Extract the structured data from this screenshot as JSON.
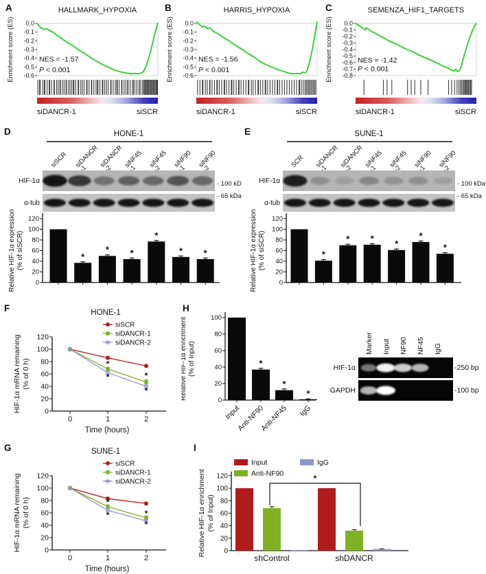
{
  "letters": {
    "A": "A",
    "B": "B",
    "C": "C",
    "D": "D",
    "E": "E",
    "F": "F",
    "G": "G",
    "H": "H",
    "I": "I"
  },
  "colors": {
    "gsea_green": "#35d435",
    "dark_red": "#b01c1c",
    "green": "#80b122",
    "purple": "#9195cb",
    "bar_black": "#0a0a0a"
  },
  "gradient_stops": [
    [
      "0%",
      "#c81f1f"
    ],
    [
      "28%",
      "#da5f5f"
    ],
    [
      "46%",
      "#efc0c0"
    ],
    [
      "54%",
      "#f6e8f0"
    ],
    [
      "62%",
      "#dcdff0"
    ],
    [
      "74%",
      "#a0a6da"
    ],
    [
      "88%",
      "#4040bf"
    ],
    [
      "100%",
      "#2222aa"
    ]
  ],
  "chart_data": [
    {
      "panel": "A",
      "type": "line",
      "subtype": "gsea-enrichment",
      "title": "HALLMARK_HYPOXIA",
      "ylabel": "Enrichment score (ES)",
      "nes_text": "NES = -1.57",
      "p_text": "P < 0.001",
      "xlabel_left": "siDANCR-1",
      "xlabel_right": "siSCR",
      "ylim": [
        -0.6,
        0
      ],
      "yticks": [
        0,
        -0.1,
        -0.2,
        -0.3,
        -0.4,
        -0.5,
        -0.6
      ],
      "nes_es": -0.44,
      "p_es": -0.56,
      "curve": [
        [
          0,
          0
        ],
        [
          0.03,
          -0.05
        ],
        [
          0.06,
          -0.07
        ],
        [
          0.08,
          -0.06
        ],
        [
          0.1,
          -0.08
        ],
        [
          0.13,
          -0.1
        ],
        [
          0.16,
          -0.13
        ],
        [
          0.2,
          -0.17
        ],
        [
          0.25,
          -0.22
        ],
        [
          0.3,
          -0.26
        ],
        [
          0.35,
          -0.31
        ],
        [
          0.4,
          -0.35
        ],
        [
          0.45,
          -0.4
        ],
        [
          0.5,
          -0.44
        ],
        [
          0.55,
          -0.48
        ],
        [
          0.6,
          -0.51
        ],
        [
          0.65,
          -0.54
        ],
        [
          0.7,
          -0.56
        ],
        [
          0.74,
          -0.57
        ],
        [
          0.78,
          -0.58
        ],
        [
          0.81,
          -0.575
        ],
        [
          0.84,
          -0.58
        ],
        [
          0.86,
          -0.57
        ],
        [
          0.88,
          -0.555
        ],
        [
          0.9,
          -0.5
        ],
        [
          0.92,
          -0.42
        ],
        [
          0.94,
          -0.32
        ],
        [
          0.96,
          -0.2
        ],
        [
          0.98,
          -0.09
        ],
        [
          1,
          0.01
        ]
      ],
      "hit_ticks": [
        0.006,
        0.02,
        0.027,
        0.048,
        0.06,
        0.065,
        0.083,
        0.1,
        0.104,
        0.12,
        0.14,
        0.143,
        0.162,
        0.175,
        0.19,
        0.193,
        0.21,
        0.224,
        0.24,
        0.243,
        0.26,
        0.273,
        0.287,
        0.3,
        0.305,
        0.32,
        0.34,
        0.345,
        0.362,
        0.375,
        0.39,
        0.41,
        0.414,
        0.43,
        0.45,
        0.453,
        0.47,
        0.488,
        0.5,
        0.504,
        0.52,
        0.54,
        0.545,
        0.56,
        0.575,
        0.59,
        0.61,
        0.613,
        0.63,
        0.648,
        0.66,
        0.665,
        0.68,
        0.7,
        0.703,
        0.72,
        0.735,
        0.75,
        0.753,
        0.77,
        0.788,
        0.8,
        0.803,
        0.82,
        0.835,
        0.85,
        0.853,
        0.87,
        0.88,
        0.888,
        0.896,
        0.903,
        0.91,
        0.917,
        0.925,
        0.932,
        0.94,
        0.947,
        0.955,
        0.962,
        0.97,
        0.977,
        0.985,
        0.992,
        0.997
      ]
    },
    {
      "panel": "B",
      "type": "line",
      "subtype": "gsea-enrichment",
      "title": "HARRIS_HYPOXIA",
      "ylabel": "Enrichment score (ES)",
      "nes_text": "NES = -1.56",
      "p_text": "P < 0.001",
      "xlabel_left": "siDANCR-1",
      "xlabel_right": "siSCR",
      "ylim": [
        -0.6,
        0
      ],
      "yticks": [
        0,
        -0.1,
        -0.2,
        -0.3,
        -0.4,
        -0.5,
        -0.6
      ],
      "nes_es": -0.44,
      "p_es": -0.56,
      "curve": [
        [
          0,
          0.02
        ],
        [
          0.03,
          -0.02
        ],
        [
          0.05,
          -0.04
        ],
        [
          0.07,
          -0.03
        ],
        [
          0.09,
          -0.06
        ],
        [
          0.11,
          -0.05
        ],
        [
          0.14,
          -0.09
        ],
        [
          0.18,
          -0.12
        ],
        [
          0.22,
          -0.16
        ],
        [
          0.27,
          -0.2
        ],
        [
          0.32,
          -0.25
        ],
        [
          0.37,
          -0.29
        ],
        [
          0.42,
          -0.34
        ],
        [
          0.47,
          -0.38
        ],
        [
          0.52,
          -0.43
        ],
        [
          0.57,
          -0.47
        ],
        [
          0.62,
          -0.5
        ],
        [
          0.67,
          -0.53
        ],
        [
          0.72,
          -0.55
        ],
        [
          0.76,
          -0.57
        ],
        [
          0.8,
          -0.58
        ],
        [
          0.83,
          -0.575
        ],
        [
          0.86,
          -0.58
        ],
        [
          0.88,
          -0.56
        ],
        [
          0.9,
          -0.57
        ],
        [
          0.915,
          -0.55
        ],
        [
          0.93,
          -0.48
        ],
        [
          0.95,
          -0.37
        ],
        [
          0.97,
          -0.22
        ],
        [
          0.985,
          -0.1
        ],
        [
          1,
          0.02
        ]
      ],
      "hit_ticks": [
        0.01,
        0.03,
        0.05,
        0.055,
        0.075,
        0.09,
        0.11,
        0.113,
        0.13,
        0.15,
        0.17,
        0.174,
        0.19,
        0.21,
        0.23,
        0.234,
        0.25,
        0.27,
        0.29,
        0.295,
        0.31,
        0.33,
        0.35,
        0.354,
        0.37,
        0.39,
        0.41,
        0.43,
        0.435,
        0.455,
        0.47,
        0.49,
        0.51,
        0.514,
        0.53,
        0.55,
        0.57,
        0.574,
        0.59,
        0.61,
        0.63,
        0.65,
        0.67,
        0.674,
        0.69,
        0.71,
        0.73,
        0.75,
        0.77,
        0.79,
        0.81,
        0.83,
        0.85,
        0.855,
        0.87,
        0.885,
        0.9,
        0.91,
        0.92,
        0.93,
        0.94,
        0.95,
        0.96,
        0.97,
        0.98,
        0.99
      ]
    },
    {
      "panel": "C",
      "type": "line",
      "subtype": "gsea-enrichment",
      "title": "SEMENZA_HIF1_TARGETS",
      "ylabel": "Enrichment score (ES)",
      "nes_text": "NES = -1.42",
      "p_text": "P < 0.001",
      "xlabel_left": "siDANCR-1",
      "xlabel_right": "siSCR",
      "ylim": [
        -0.8,
        0
      ],
      "yticks": [
        0,
        -0.1,
        -0.2,
        -0.3,
        -0.4,
        -0.5,
        -0.6,
        -0.7,
        -0.8
      ],
      "nes_es": -0.6,
      "p_es": -0.73,
      "curve": [
        [
          0,
          0
        ],
        [
          0.05,
          -0.06
        ],
        [
          0.08,
          -0.1
        ],
        [
          0.09,
          -0.07
        ],
        [
          0.13,
          -0.12
        ],
        [
          0.18,
          -0.17
        ],
        [
          0.23,
          -0.22
        ],
        [
          0.28,
          -0.27
        ],
        [
          0.33,
          -0.31
        ],
        [
          0.38,
          -0.36
        ],
        [
          0.43,
          -0.4
        ],
        [
          0.48,
          -0.44
        ],
        [
          0.53,
          -0.49
        ],
        [
          0.58,
          -0.53
        ],
        [
          0.63,
          -0.57
        ],
        [
          0.68,
          -0.61
        ],
        [
          0.72,
          -0.65
        ],
        [
          0.76,
          -0.68
        ],
        [
          0.79,
          -0.71
        ],
        [
          0.815,
          -0.73
        ],
        [
          0.83,
          -0.7
        ],
        [
          0.845,
          -0.74
        ],
        [
          0.86,
          -0.72
        ],
        [
          0.875,
          -0.66
        ],
        [
          0.89,
          -0.55
        ],
        [
          0.91,
          -0.42
        ],
        [
          0.93,
          -0.3
        ],
        [
          0.95,
          -0.19
        ],
        [
          0.97,
          -0.1
        ],
        [
          0.985,
          -0.04
        ],
        [
          1,
          0.005
        ]
      ],
      "hit_ticks": [
        0.07,
        0.23,
        0.26,
        0.3,
        0.43,
        0.46,
        0.49,
        0.54,
        0.6,
        0.77,
        0.795,
        0.82,
        0.84,
        0.855,
        0.867,
        0.878,
        0.888,
        0.897,
        0.905,
        0.913,
        0.92,
        0.928,
        0.936,
        0.944,
        0.952,
        0.96
      ]
    },
    {
      "panel": "D",
      "type": "blot-with-bar",
      "cell_line": "HONE-1",
      "lanes": [
        "siSCR",
        "siDANCR\n-1",
        "siDANCR\n-2",
        "siNF45\n-1",
        "siNF45\n-2",
        "siNF90\n-1",
        "siNF90\n-2"
      ],
      "blot_rows": [
        {
          "name": "HIF-1α",
          "size_label": "100 kDa",
          "intensities": [
            0.95,
            0.75,
            0.4,
            0.5,
            0.45,
            0.58,
            0.45
          ]
        },
        {
          "name": "α-tub",
          "size_label": "65 kDa",
          "intensities": [
            0.95,
            0.95,
            0.95,
            0.95,
            0.95,
            0.95,
            0.95
          ]
        }
      ],
      "bar": {
        "ylabel_lines": [
          "Relative HIF-1α expression",
          "(% of siSCR)"
        ],
        "ylim": [
          0,
          120
        ],
        "ytick_step": 20,
        "values": [
          100,
          37,
          50,
          44,
          77,
          48,
          44
        ],
        "errors": [
          0,
          2,
          2,
          2,
          2,
          2,
          2
        ],
        "sig": [
          "",
          "*",
          "*",
          "*",
          "*",
          "*",
          "*"
        ]
      }
    },
    {
      "panel": "E",
      "type": "blot-with-bar",
      "cell_line": "SUNE-1",
      "lanes": [
        "SCR",
        "siDANCR\n-1",
        "siDANCR\n-2",
        "siNF45\n-1",
        "siNF45\n-2",
        "siNF90\n-1",
        "siNF90\n-2"
      ],
      "blot_rows": [
        {
          "name": "HIF-1α",
          "size_label": "100 kDa",
          "intensities": [
            0.9,
            0.22,
            0.13,
            0.28,
            0.2,
            0.22,
            0.13
          ]
        },
        {
          "name": "α-tub",
          "size_label": "65 kDa",
          "intensities": [
            0.95,
            0.95,
            0.95,
            0.95,
            0.95,
            0.95,
            0.95
          ]
        }
      ],
      "bar": {
        "ylabel_lines": [
          "Relative HIF-1α expression",
          "(% of siSCR)"
        ],
        "ylim": [
          0,
          120
        ],
        "ytick_step": 20,
        "values": [
          100,
          41,
          70,
          71,
          61,
          76,
          54
        ],
        "errors": [
          0,
          2,
          2,
          2,
          2,
          2,
          2
        ],
        "sig": [
          "",
          "*",
          "*",
          "*",
          "*",
          "*",
          "*"
        ]
      }
    },
    {
      "panel": "F",
      "type": "line",
      "title": "HONE-1",
      "xlabel": "Time (hours)",
      "ylabel_lines": [
        "HIF-1α mRNA remaining",
        "(% of 0 h)"
      ],
      "x": [
        0,
        1,
        2
      ],
      "ylim": [
        0,
        120
      ],
      "ytick_step": 20,
      "series": [
        {
          "name": "siSCR",
          "color_key": "dark_red",
          "marker": "circle",
          "values": [
            100,
            86,
            73
          ],
          "errors": [
            0,
            2,
            2
          ]
        },
        {
          "name": "siDANCR-1",
          "color_key": "green",
          "marker": "square",
          "values": [
            100,
            68,
            47
          ],
          "errors": [
            0,
            3,
            4
          ]
        },
        {
          "name": "siDANCR-2",
          "color_key": "purple",
          "marker": "star",
          "values": [
            100,
            62,
            40
          ],
          "errors": [
            0,
            3,
            3
          ]
        }
      ],
      "sig_marks": [
        [
          1,
          76
        ],
        [
          1,
          55
        ],
        [
          2,
          57
        ],
        [
          2,
          33
        ]
      ]
    },
    {
      "panel": "G",
      "type": "line",
      "title": "SUNE-1",
      "xlabel": "Time (hours)",
      "ylabel_lines": [
        "HIF-1α mRNA remaining",
        "(% of 0 h)"
      ],
      "x": [
        0,
        1,
        2
      ],
      "ylim": [
        0,
        120
      ],
      "ytick_step": 20,
      "series": [
        {
          "name": "siSCR",
          "color_key": "dark_red",
          "marker": "circle",
          "values": [
            100,
            83,
            75
          ],
          "errors": [
            0,
            2,
            2
          ]
        },
        {
          "name": "siDANCR-1",
          "color_key": "green",
          "marker": "square",
          "values": [
            100,
            70,
            52
          ],
          "errors": [
            0,
            3,
            3
          ]
        },
        {
          "name": "siDANCR-2",
          "color_key": "purple",
          "marker": "star",
          "values": [
            100,
            64,
            47
          ],
          "errors": [
            0,
            3,
            3
          ]
        }
      ],
      "sig_marks": [
        [
          1,
          77
        ],
        [
          1,
          56
        ],
        [
          2,
          59
        ],
        [
          2,
          41
        ]
      ]
    },
    {
      "panel": "H",
      "type": "bar",
      "ylabel_lines": [
        "Relative HIF-1α enrichment",
        "(% of Input)"
      ],
      "categories": [
        "Input",
        "Anti-NF90",
        "Anti-NF45",
        "IgG"
      ],
      "values": [
        100,
        37,
        12,
        1
      ],
      "errors": [
        0,
        1.5,
        1.5,
        0.5
      ],
      "sig": [
        "",
        "*",
        "*",
        "*"
      ],
      "ylim": [
        0,
        100
      ],
      "ytick_step": 20
    },
    {
      "panel": "Hgel",
      "type": "gel",
      "lanes": [
        "Marker",
        "Input",
        "NF90",
        "NF45",
        "IgG"
      ],
      "rows": [
        {
          "name": "HIF-1α",
          "size_label": "250 bp",
          "intensities": [
            0.45,
            0.95,
            0.8,
            0.7,
            0
          ]
        },
        {
          "name": "GAPDH",
          "size_label": "100 bp",
          "intensities": [
            0.7,
            1,
            0,
            0,
            0
          ]
        }
      ]
    },
    {
      "panel": "I",
      "type": "grouped_bar",
      "ylabel_lines": [
        "Relative HIF-1α enrichment",
        "(% of Input)"
      ],
      "groups": [
        "shControl",
        "shDANCR"
      ],
      "series": [
        {
          "name": "Input",
          "color_key": "dark_red",
          "values": [
            100,
            100
          ],
          "errors": [
            0,
            0
          ]
        },
        {
          "name": "Anti-NF90",
          "color_key": "green",
          "values": [
            68,
            32
          ],
          "errors": [
            2.5,
            1.5
          ]
        },
        {
          "name": "IgG",
          "color_key": "purple",
          "values": [
            0.8,
            2.5
          ],
          "errors": [
            0,
            0.5
          ]
        }
      ],
      "ylim": [
        0,
        120
      ],
      "ytick_step": 20,
      "sig_bracket": {
        "label": "*"
      }
    }
  ]
}
